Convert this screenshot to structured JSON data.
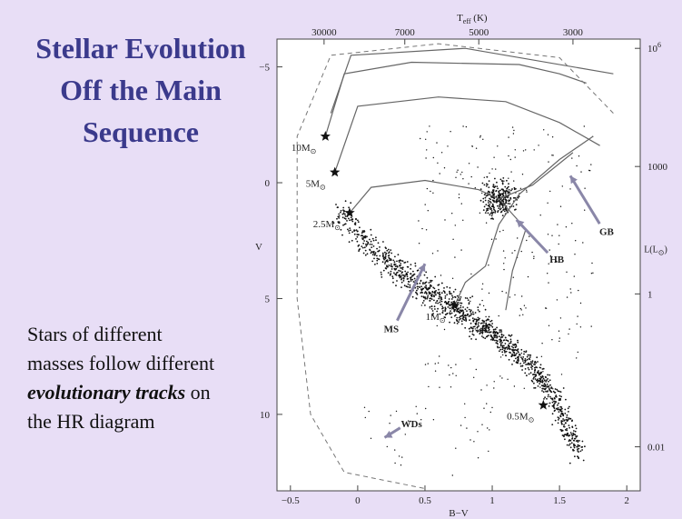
{
  "slide": {
    "title_lines": [
      "Stellar Evolution",
      "Off the Main",
      "Sequence"
    ],
    "body_lines": [
      "Stars of different",
      "masses follow different",
      "on",
      "the HR diagram"
    ],
    "body_emphasis": "evolutionary tracks"
  },
  "chart_data": {
    "type": "scatter",
    "top_axis_label": "T",
    "top_axis_label_sub": "eff",
    "top_axis_label_unit": "(K)",
    "top_ticks": [
      "30000",
      "7000",
      "5000",
      "3000"
    ],
    "top_tick_bv": [
      -0.25,
      0.35,
      0.9,
      1.6
    ],
    "xlabel": "B−V",
    "x_ticks": [
      -0.5,
      0,
      0.5,
      1,
      1.5,
      2
    ],
    "x_tick_labels": [
      "−0.5",
      "0",
      "0.5",
      "1",
      "1.5",
      "2"
    ],
    "xlim": [
      -0.6,
      2.1
    ],
    "ylabel": "V",
    "ylim": [
      -6.2,
      13.3
    ],
    "y_ticks": [
      -5,
      0,
      5,
      10
    ],
    "y_tick_labels": [
      "−5",
      "0",
      "5",
      "10"
    ],
    "right_axis_label": "L(L",
    "right_axis_label_sun": "⊙",
    "right_ticks": [
      {
        "label": "10",
        "sup": "6",
        "mag": -5.8
      },
      {
        "label": "1000",
        "sup": "",
        "mag": -0.7
      },
      {
        "label": "1",
        "sup": "",
        "mag": 4.8
      },
      {
        "label": "0.01",
        "sup": "",
        "mag": 11.4
      }
    ],
    "marked_stars": [
      {
        "mass": "10M",
        "bv": -0.24,
        "v": -2.0
      },
      {
        "mass": "5M",
        "bv": -0.17,
        "v": -0.45
      },
      {
        "mass": "2.5M",
        "bv": -0.06,
        "v": 1.3
      },
      {
        "mass": "1M",
        "bv": 0.72,
        "v": 5.3
      },
      {
        "mass": "0.5M",
        "bv": 1.38,
        "v": 9.6
      }
    ],
    "mass_label_sun": "⊙",
    "region_labels": [
      {
        "text": "MS",
        "bv": 0.25,
        "v": 6.3,
        "arrow_to": [
          0.5,
          3.5
        ]
      },
      {
        "text": "HB",
        "bv": 1.48,
        "v": 3.3,
        "arrow_to": [
          1.18,
          1.6
        ]
      },
      {
        "text": "GB",
        "bv": 1.85,
        "v": 2.1,
        "arrow_to": [
          1.58,
          -0.3
        ]
      },
      {
        "text": "WDs",
        "bv": 0.4,
        "v": 10.4,
        "arrow_to": [
          0.2,
          11.0
        ]
      }
    ],
    "main_sequence_ridge": [
      [
        -0.1,
        1.5
      ],
      [
        0.1,
        2.8
      ],
      [
        0.3,
        3.8
      ],
      [
        0.5,
        4.6
      ],
      [
        0.7,
        5.3
      ],
      [
        0.9,
        6.1
      ],
      [
        1.1,
        6.9
      ],
      [
        1.3,
        8.0
      ],
      [
        1.45,
        9.2
      ],
      [
        1.55,
        10.5
      ],
      [
        1.65,
        11.8
      ]
    ],
    "giant_clump": [
      1.05,
      0.7
    ],
    "grid": false,
    "legend": "none"
  }
}
